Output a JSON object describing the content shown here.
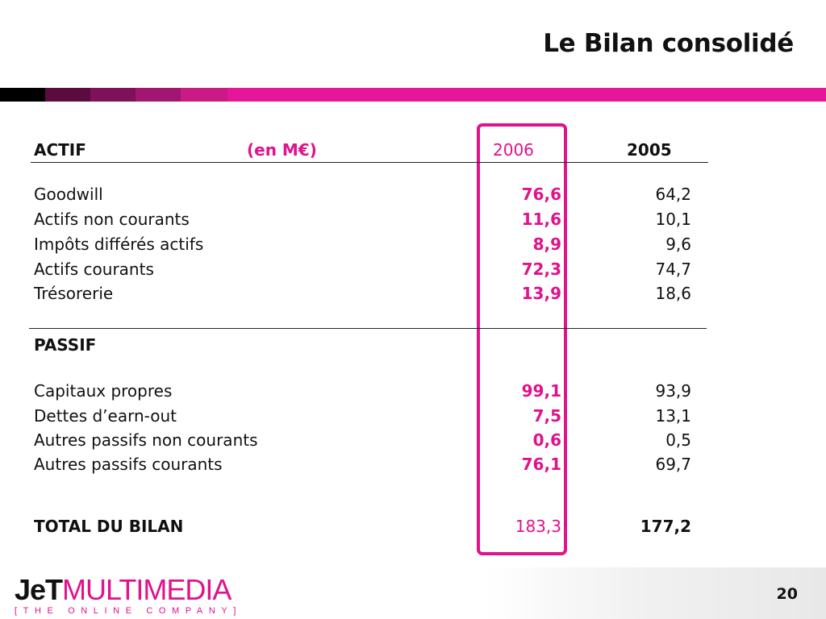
{
  "slide": {
    "title": "Le Bilan consolidé",
    "page_number": "20"
  },
  "table": {
    "actif_label": "ACTIF",
    "unit": "(en M€)",
    "year_current": "2006",
    "year_previous": "2005",
    "actif_rows": [
      {
        "label": "Goodwill",
        "v2006": "76,6",
        "v2005": "64,2"
      },
      {
        "label": "Actifs non courants",
        "v2006": "11,6",
        "v2005": "10,1"
      },
      {
        "label": "Impôts différés actifs",
        "v2006": "8,9",
        "v2005": "9,6"
      },
      {
        "label": "Actifs courants",
        "v2006": "72,3",
        "v2005": "74,7"
      },
      {
        "label": "Trésorerie",
        "v2006": "13,9",
        "v2005": "18,6"
      }
    ],
    "passif_label": "PASSIF",
    "passif_rows": [
      {
        "label": "Capitaux propres",
        "v2006": "99,1",
        "v2005": "93,9"
      },
      {
        "label": "Dettes d’earn-out",
        "v2006": "7,5",
        "v2005": "13,1"
      },
      {
        "label": "Autres passifs non courants",
        "v2006": "0,6",
        "v2005": "0,5"
      },
      {
        "label": "Autres passifs courants",
        "v2006": "76,1",
        "v2005": "69,7"
      }
    ],
    "total": {
      "label": "TOTAL DU BILAN",
      "v2006": "183,3",
      "v2005": "177,2"
    }
  },
  "logo": {
    "brand_black": "JeT",
    "brand_pink": "MULTIMEDIA",
    "tagline": "[THE ONLINE COMPANY]"
  },
  "colors": {
    "accent": "#e0128c",
    "stripe": [
      "#000000",
      "#5c0b3e",
      "#7e1157",
      "#a01670",
      "#c91a86",
      "#e5169a"
    ]
  }
}
